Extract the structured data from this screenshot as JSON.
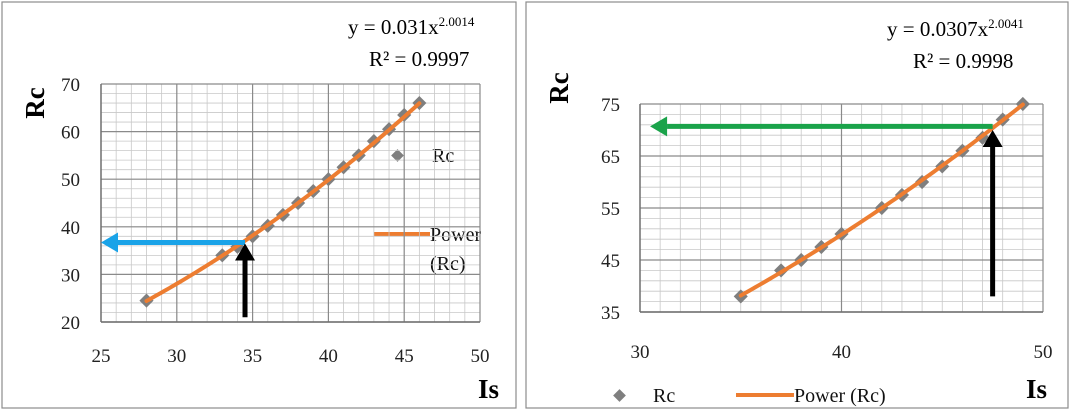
{
  "chart_data": [
    {
      "type": "scatter",
      "xlabel": "Is",
      "ylabel": "Rc",
      "xlim": [
        25,
        50
      ],
      "ylim": [
        20,
        70
      ],
      "xticks": [
        "25",
        "30",
        "35",
        "40",
        "45",
        "50"
      ],
      "yticks": [
        "20",
        "30",
        "40",
        "50",
        "60",
        "70"
      ],
      "grid": true,
      "legend_position": "right",
      "equation": {
        "prefix": "y = 0.031x",
        "exponent": "2.0014",
        "r2": "R² = 0.9997"
      },
      "series": [
        {
          "name": "Rc",
          "kind": "points",
          "color": "#7f7f7f",
          "x": [
            28,
            33,
            34,
            35,
            36,
            37,
            38,
            39,
            40,
            41,
            42,
            43,
            44,
            45,
            46
          ],
          "y": [
            24.5,
            34,
            35.8,
            38,
            40.2,
            42.5,
            45,
            47.5,
            50,
            52.5,
            55,
            58,
            60.5,
            63.5,
            66
          ]
        },
        {
          "name": "Power\n(Rc)",
          "kind": "fit",
          "color": "#ed7d31",
          "coef": 0.031,
          "exp": 2.0014,
          "xmin": 28,
          "xmax": 46
        }
      ],
      "annotations": [
        {
          "type": "arrow",
          "color": "#1aa3e8",
          "from": [
            34.5,
            36.7
          ],
          "to": [
            25,
            36.7
          ]
        },
        {
          "type": "arrow",
          "color": "#000000",
          "from": [
            34.5,
            21
          ],
          "to": [
            34.5,
            36.5
          ]
        }
      ]
    },
    {
      "type": "scatter",
      "xlabel": "Is",
      "ylabel": "Rc",
      "xlim": [
        30,
        50
      ],
      "ylim": [
        35,
        75
      ],
      "xticks": [
        "30",
        "40",
        "50"
      ],
      "yticks": [
        "35",
        "45",
        "55",
        "65",
        "75"
      ],
      "grid": true,
      "legend_position": "bottom",
      "equation": {
        "prefix": "y = 0.0307x",
        "exponent": "2.0041",
        "r2": "R² = 0.9998"
      },
      "series": [
        {
          "name": "Rc",
          "kind": "points",
          "color": "#7f7f7f",
          "x": [
            35,
            37,
            38,
            39,
            40,
            42,
            43,
            44,
            45,
            46,
            47,
            48,
            49
          ],
          "y": [
            38,
            43,
            45,
            47.5,
            50,
            55,
            57.5,
            60,
            63,
            66,
            68.5,
            72,
            75
          ]
        },
        {
          "name": "Power (Rc)",
          "kind": "fit",
          "color": "#ed7d31",
          "coef": 0.0307,
          "exp": 2.0041,
          "xmin": 35,
          "xmax": 49
        }
      ],
      "annotations": [
        {
          "type": "arrow",
          "color": "#1aa34a",
          "from": [
            47.5,
            70.7
          ],
          "to": [
            30.5,
            70.7
          ]
        },
        {
          "type": "arrow",
          "color": "#000000",
          "from": [
            47.5,
            38
          ],
          "to": [
            47.5,
            70
          ]
        }
      ]
    }
  ]
}
